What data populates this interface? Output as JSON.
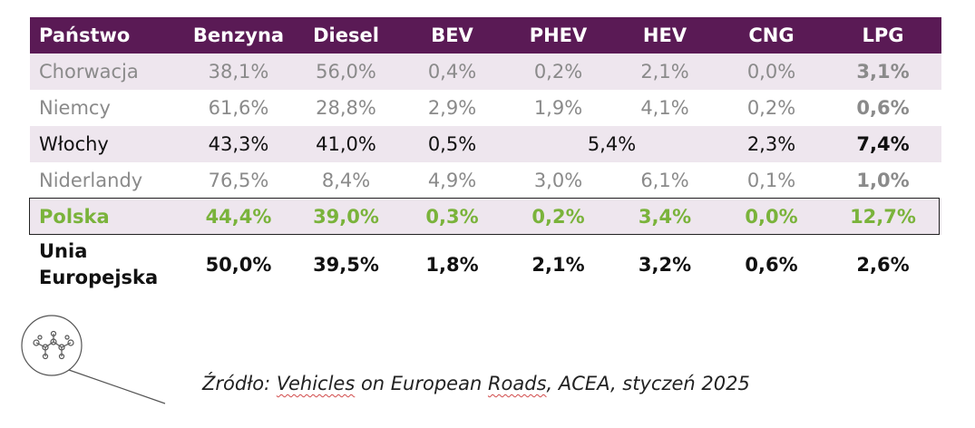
{
  "table": {
    "headers": [
      "Państwo",
      "Benzyna",
      "Diesel",
      "BEV",
      "PHEV",
      "HEV",
      "CNG",
      "LPG"
    ],
    "rows": [
      {
        "country": "Chorwacja",
        "benzyna": "38,1%",
        "diesel": "56,0%",
        "bev": "0,4%",
        "phev": "0,2%",
        "hev": "2,1%",
        "cng": "0,0%",
        "lpg": "3,1%"
      },
      {
        "country": "Niemcy",
        "benzyna": "61,6%",
        "diesel": "28,8%",
        "bev": "2,9%",
        "phev": "1,9%",
        "hev": "4,1%",
        "cng": "0,2%",
        "lpg": "0,6%"
      },
      {
        "country": "Włochy",
        "benzyna": "43,3%",
        "diesel": "41,0%",
        "bev": "0,5%",
        "phev_hev": "5,4%",
        "cng": "2,3%",
        "lpg": "7,4%"
      },
      {
        "country": "Niderlandy",
        "benzyna": "76,5%",
        "diesel": "8,4%",
        "bev": "4,9%",
        "phev": "3,0%",
        "hev": "6,1%",
        "cng": "0,1%",
        "lpg": "1,0%"
      },
      {
        "country": "Polska",
        "benzyna": "44,4%",
        "diesel": "39,0%",
        "bev": "0,3%",
        "phev": "0,2%",
        "hev": "3,4%",
        "cng": "0,0%",
        "lpg": "12,7%"
      },
      {
        "country_line1": "Unia",
        "country_line2": "Europejska",
        "benzyna": "50,0%",
        "diesel": "39,5%",
        "bev": "1,8%",
        "phev": "2,1%",
        "hev": "3,2%",
        "cng": "0,6%",
        "lpg": "2,6%"
      }
    ]
  },
  "source": {
    "prefix": "Źródło: ",
    "w1": "Vehicles",
    "mid": " on European ",
    "w2": "Roads",
    "tail": ", ACEA, styczeń 2025"
  },
  "colors": {
    "header_bg": "#5a1a55",
    "row_shade": "#eee6ee",
    "highlight": "#7ab33b",
    "muted_text": "#8a8a8a"
  }
}
